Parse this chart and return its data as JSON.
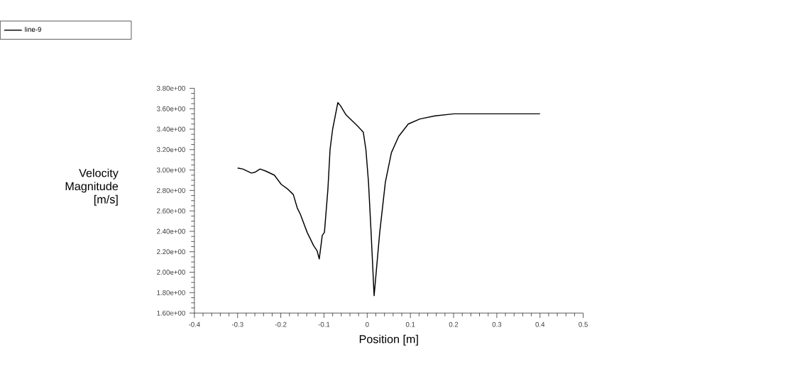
{
  "chart_data": {
    "type": "line",
    "xlabel": "Position [m]",
    "ylabel": "Velocity Magnitude [m/s]",
    "xlim": [
      -0.4,
      0.5
    ],
    "ylim": [
      1.6,
      3.8
    ],
    "xticks": [
      -0.4,
      -0.3,
      -0.2,
      -0.1,
      0,
      0.1,
      0.2,
      0.3,
      0.4,
      0.5
    ],
    "yticks": [
      {
        "value": 1.6,
        "label": "1.60e+00"
      },
      {
        "value": 1.8,
        "label": "1.80e+00"
      },
      {
        "value": 2.0,
        "label": "2.00e+00"
      },
      {
        "value": 2.2,
        "label": "2.20e+00"
      },
      {
        "value": 2.4,
        "label": "2.40e+00"
      },
      {
        "value": 2.6,
        "label": "2.60e+00"
      },
      {
        "value": 2.8,
        "label": "2.80e+00"
      },
      {
        "value": 3.0,
        "label": "3.00e+00"
      },
      {
        "value": 3.2,
        "label": "3.20e+00"
      },
      {
        "value": 3.4,
        "label": "3.40e+00"
      },
      {
        "value": 3.6,
        "label": "3.60e+00"
      },
      {
        "value": 3.8,
        "label": "3.80e+00"
      }
    ],
    "legend": "top left",
    "grid": false,
    "marker": "none",
    "line_style": "solid",
    "series": [
      {
        "name": "line-9",
        "color": "#000000",
        "x": [
          -0.3,
          -0.288,
          -0.268,
          -0.259,
          -0.248,
          -0.235,
          -0.215,
          -0.199,
          -0.183,
          -0.171,
          -0.162,
          -0.155,
          -0.139,
          -0.124,
          -0.116,
          -0.111,
          -0.104,
          -0.099,
          -0.091,
          -0.086,
          -0.08,
          -0.068,
          -0.062,
          -0.049,
          -0.022,
          -0.009,
          -0.003,
          0.003,
          0.009,
          0.016,
          0.029,
          0.042,
          0.056,
          0.073,
          0.095,
          0.122,
          0.157,
          0.201,
          0.29,
          0.4
        ],
        "values": [
          3.02,
          3.01,
          2.97,
          2.98,
          3.01,
          2.99,
          2.95,
          2.86,
          2.81,
          2.76,
          2.63,
          2.57,
          2.39,
          2.26,
          2.21,
          2.13,
          2.36,
          2.39,
          2.81,
          3.2,
          3.4,
          3.66,
          3.63,
          3.54,
          3.43,
          3.37,
          3.2,
          2.88,
          2.39,
          1.77,
          2.39,
          2.88,
          3.17,
          3.33,
          3.45,
          3.5,
          3.53,
          3.55,
          3.55,
          3.55
        ]
      }
    ]
  }
}
